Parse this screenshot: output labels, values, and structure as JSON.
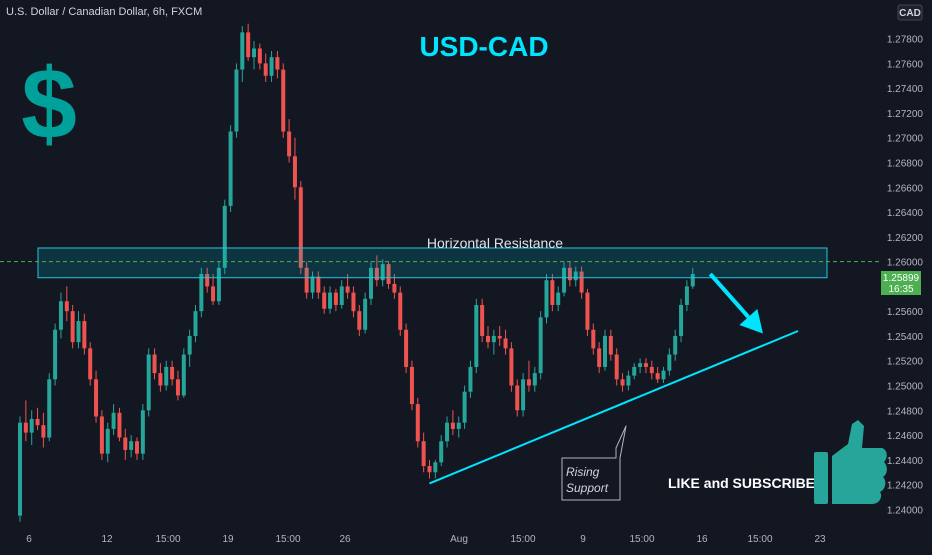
{
  "header": {
    "symbol_line": "U.S. Dollar / Canadian Dollar, 6h, FXCM",
    "currency_badge": "CAD"
  },
  "overlay": {
    "title": "USD-CAD",
    "dollar_sign": "$",
    "resistance_label": "Horizontal Resistance",
    "support_label_line1": "Rising",
    "support_label_line2": "Support",
    "cta": "LIKE and SUBSCRIBE",
    "title_color": "#00e5ff",
    "dollar_color": "#00a19a",
    "thumb_color": "#26a69a"
  },
  "price_tag": {
    "price": "1.25899",
    "countdown": "16:35",
    "color": "#4caf50"
  },
  "chart_data": {
    "type": "candlestick",
    "symbol": "USDCAD",
    "timeframe": "6h",
    "y_axis": {
      "ticks": [
        "1.27800",
        "1.27600",
        "1.27400",
        "1.27200",
        "1.27000",
        "1.26800",
        "1.26600",
        "1.26400",
        "1.26200",
        "1.26000",
        "1.25600",
        "1.25400",
        "1.25200",
        "1.25000",
        "1.24800",
        "1.24600",
        "1.24400",
        "1.24200",
        "1.24000"
      ],
      "range": [
        1.2385,
        1.2795
      ]
    },
    "x_axis": {
      "ticks": [
        "6",
        "12",
        "15:00",
        "19",
        "15:00",
        "26",
        "Aug",
        "15:00",
        "9",
        "15:00",
        "16",
        "15:00",
        "23"
      ]
    },
    "current_price": 1.25899,
    "up_color": "#26a69a",
    "down_color": "#ef5350",
    "resistance_zone": [
      1.2587,
      1.2611
    ],
    "support_line": {
      "from": {
        "bar": 70,
        "price": 1.2421
      },
      "to": {
        "bar": 133,
        "price": 1.2544
      }
    },
    "projection_arrow": {
      "from": {
        "bar": 118,
        "price": 1.259
      },
      "to": {
        "bar": 127,
        "price": 1.2542
      }
    },
    "candles": [
      [
        1.2395,
        1.2475,
        1.239,
        1.247
      ],
      [
        1.247,
        1.2488,
        1.2455,
        1.2462
      ],
      [
        1.2462,
        1.248,
        1.2452,
        1.2473
      ],
      [
        1.2473,
        1.2482,
        1.2464,
        1.2468
      ],
      [
        1.2468,
        1.2478,
        1.245,
        1.2458
      ],
      [
        1.2458,
        1.251,
        1.2455,
        1.2505
      ],
      [
        1.2505,
        1.255,
        1.25,
        1.2545
      ],
      [
        1.2545,
        1.2575,
        1.2538,
        1.2568
      ],
      [
        1.2568,
        1.258,
        1.2552,
        1.256
      ],
      [
        1.256,
        1.2565,
        1.253,
        1.2535
      ],
      [
        1.2535,
        1.256,
        1.253,
        1.2552
      ],
      [
        1.2552,
        1.2558,
        1.2525,
        1.253
      ],
      [
        1.253,
        1.2535,
        1.25,
        1.2505
      ],
      [
        1.2505,
        1.2512,
        1.247,
        1.2475
      ],
      [
        1.2475,
        1.248,
        1.244,
        1.2445
      ],
      [
        1.2445,
        1.247,
        1.2438,
        1.2465
      ],
      [
        1.2465,
        1.2485,
        1.246,
        1.2478
      ],
      [
        1.2478,
        1.2482,
        1.2455,
        1.2458
      ],
      [
        1.2458,
        1.2465,
        1.244,
        1.2448
      ],
      [
        1.2448,
        1.246,
        1.2442,
        1.2455
      ],
      [
        1.2455,
        1.2458,
        1.244,
        1.2445
      ],
      [
        1.2445,
        1.2485,
        1.244,
        1.248
      ],
      [
        1.248,
        1.253,
        1.2475,
        1.2525
      ],
      [
        1.2525,
        1.253,
        1.2505,
        1.251
      ],
      [
        1.251,
        1.2518,
        1.2495,
        1.25
      ],
      [
        1.25,
        1.252,
        1.2496,
        1.2515
      ],
      [
        1.2515,
        1.252,
        1.25,
        1.2505
      ],
      [
        1.2505,
        1.2512,
        1.2488,
        1.2492
      ],
      [
        1.2492,
        1.253,
        1.249,
        1.2525
      ],
      [
        1.2525,
        1.2545,
        1.2515,
        1.254
      ],
      [
        1.254,
        1.2565,
        1.2535,
        1.256
      ],
      [
        1.256,
        1.2595,
        1.2555,
        1.259
      ],
      [
        1.259,
        1.2595,
        1.2575,
        1.258
      ],
      [
        1.258,
        1.259,
        1.2565,
        1.2568
      ],
      [
        1.2568,
        1.26,
        1.2565,
        1.2595
      ],
      [
        1.2595,
        1.265,
        1.259,
        1.2645
      ],
      [
        1.2645,
        1.271,
        1.264,
        1.2705
      ],
      [
        1.2705,
        1.276,
        1.27,
        1.2755
      ],
      [
        1.2755,
        1.279,
        1.2745,
        1.2785
      ],
      [
        1.2785,
        1.2792,
        1.2762,
        1.2765
      ],
      [
        1.2765,
        1.2778,
        1.2755,
        1.2772
      ],
      [
        1.2772,
        1.2776,
        1.2755,
        1.276
      ],
      [
        1.276,
        1.2768,
        1.2745,
        1.275
      ],
      [
        1.275,
        1.277,
        1.2745,
        1.2765
      ],
      [
        1.2765,
        1.277,
        1.2748,
        1.2755
      ],
      [
        1.2755,
        1.276,
        1.27,
        1.2705
      ],
      [
        1.2705,
        1.2715,
        1.268,
        1.2685
      ],
      [
        1.2685,
        1.27,
        1.265,
        1.266
      ],
      [
        1.266,
        1.2665,
        1.259,
        1.2595
      ],
      [
        1.2595,
        1.26,
        1.257,
        1.2575
      ],
      [
        1.2575,
        1.2592,
        1.257,
        1.2588
      ],
      [
        1.2588,
        1.2592,
        1.257,
        1.2575
      ],
      [
        1.2575,
        1.258,
        1.2558,
        1.2562
      ],
      [
        1.2562,
        1.258,
        1.2558,
        1.2575
      ],
      [
        1.2575,
        1.2578,
        1.256,
        1.2565
      ],
      [
        1.2565,
        1.2585,
        1.2562,
        1.258
      ],
      [
        1.258,
        1.259,
        1.257,
        1.2575
      ],
      [
        1.2575,
        1.258,
        1.2555,
        1.256
      ],
      [
        1.256,
        1.2565,
        1.254,
        1.2545
      ],
      [
        1.2545,
        1.2575,
        1.2542,
        1.257
      ],
      [
        1.257,
        1.26,
        1.2565,
        1.2595
      ],
      [
        1.2595,
        1.2605,
        1.258,
        1.2585
      ],
      [
        1.2585,
        1.2602,
        1.258,
        1.2598
      ],
      [
        1.2598,
        1.26,
        1.2578,
        1.2582
      ],
      [
        1.2582,
        1.259,
        1.257,
        1.2575
      ],
      [
        1.2575,
        1.258,
        1.254,
        1.2545
      ],
      [
        1.2545,
        1.255,
        1.251,
        1.2515
      ],
      [
        1.2515,
        1.252,
        1.248,
        1.2485
      ],
      [
        1.2485,
        1.249,
        1.245,
        1.2455
      ],
      [
        1.2455,
        1.2462,
        1.243,
        1.2435
      ],
      [
        1.2435,
        1.244,
        1.2425,
        1.243
      ],
      [
        1.243,
        1.244,
        1.2425,
        1.2438
      ],
      [
        1.2438,
        1.246,
        1.2435,
        1.2455
      ],
      [
        1.2455,
        1.2475,
        1.245,
        1.247
      ],
      [
        1.247,
        1.248,
        1.246,
        1.2465
      ],
      [
        1.2465,
        1.2475,
        1.2458,
        1.247
      ],
      [
        1.247,
        1.25,
        1.2465,
        1.2495
      ],
      [
        1.2495,
        1.252,
        1.249,
        1.2515
      ],
      [
        1.2515,
        1.257,
        1.251,
        1.2565
      ],
      [
        1.2565,
        1.257,
        1.2535,
        1.254
      ],
      [
        1.254,
        1.2548,
        1.253,
        1.2535
      ],
      [
        1.2535,
        1.2545,
        1.2525,
        1.254
      ],
      [
        1.254,
        1.2548,
        1.2532,
        1.2538
      ],
      [
        1.2538,
        1.2545,
        1.2525,
        1.253
      ],
      [
        1.253,
        1.2535,
        1.2495,
        1.25
      ],
      [
        1.25,
        1.2505,
        1.2475,
        1.248
      ],
      [
        1.248,
        1.251,
        1.2475,
        1.2505
      ],
      [
        1.2505,
        1.252,
        1.2495,
        1.25
      ],
      [
        1.25,
        1.2515,
        1.2495,
        1.251
      ],
      [
        1.251,
        1.256,
        1.2505,
        1.2555
      ],
      [
        1.2555,
        1.259,
        1.255,
        1.2585
      ],
      [
        1.2585,
        1.259,
        1.256,
        1.2565
      ],
      [
        1.2565,
        1.258,
        1.256,
        1.2575
      ],
      [
        1.2575,
        1.26,
        1.2572,
        1.2595
      ],
      [
        1.2595,
        1.26,
        1.258,
        1.2585
      ],
      [
        1.2585,
        1.2596,
        1.258,
        1.2592
      ],
      [
        1.2592,
        1.2596,
        1.257,
        1.2575
      ],
      [
        1.2575,
        1.2578,
        1.254,
        1.2545
      ],
      [
        1.2545,
        1.255,
        1.2525,
        1.253
      ],
      [
        1.253,
        1.2535,
        1.251,
        1.2515
      ],
      [
        1.2515,
        1.2545,
        1.2512,
        1.254
      ],
      [
        1.254,
        1.2545,
        1.252,
        1.2525
      ],
      [
        1.2525,
        1.253,
        1.25,
        1.2505
      ],
      [
        1.2505,
        1.251,
        1.2495,
        1.25
      ],
      [
        1.25,
        1.2512,
        1.2496,
        1.2508
      ],
      [
        1.2508,
        1.2518,
        1.2505,
        1.2515
      ],
      [
        1.2515,
        1.2522,
        1.251,
        1.2518
      ],
      [
        1.2518,
        1.2522,
        1.251,
        1.2515
      ],
      [
        1.2515,
        1.252,
        1.2505,
        1.251
      ],
      [
        1.251,
        1.2515,
        1.2502,
        1.2505
      ],
      [
        1.2505,
        1.2515,
        1.2502,
        1.2512
      ],
      [
        1.2512,
        1.253,
        1.2508,
        1.2525
      ],
      [
        1.2525,
        1.2545,
        1.252,
        1.254
      ],
      [
        1.254,
        1.257,
        1.2535,
        1.2565
      ],
      [
        1.2565,
        1.2585,
        1.256,
        1.258
      ],
      [
        1.258,
        1.2595,
        1.2578,
        1.259
      ]
    ]
  }
}
